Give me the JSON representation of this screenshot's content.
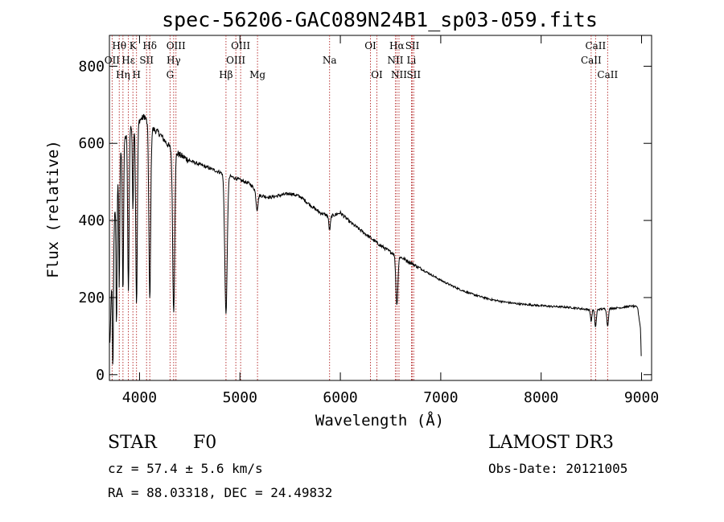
{
  "chart_data": {
    "type": "line",
    "title": "spec-56206-GAC089N24B1_sp03-059.fits",
    "xlabel": "Wavelength (Å)",
    "ylabel": "Flux (relative)",
    "xlim": [
      3700,
      9100
    ],
    "ylim": [
      -15,
      880
    ],
    "x_ticks": [
      4000,
      5000,
      6000,
      7000,
      8000,
      9000
    ],
    "x_tick_labels": [
      "4000",
      "5000",
      "6000",
      "7000",
      "8000",
      "9000"
    ],
    "y_ticks": [
      0,
      200,
      400,
      600,
      800
    ],
    "y_tick_labels": [
      "0",
      "200",
      "400",
      "600",
      "800"
    ],
    "continuum": [
      [
        3705,
        80
      ],
      [
        3730,
        300
      ],
      [
        3760,
        450
      ],
      [
        3800,
        560
      ],
      [
        3850,
        610
      ],
      [
        3900,
        640
      ],
      [
        3950,
        650
      ],
      [
        4000,
        660
      ],
      [
        4050,
        670
      ],
      [
        4100,
        640
      ],
      [
        4150,
        635
      ],
      [
        4200,
        625
      ],
      [
        4300,
        590
      ],
      [
        4400,
        570
      ],
      [
        4500,
        555
      ],
      [
        4600,
        545
      ],
      [
        4700,
        535
      ],
      [
        4800,
        525
      ],
      [
        4900,
        515
      ],
      [
        5000,
        505
      ],
      [
        5100,
        495
      ],
      [
        5200,
        465
      ],
      [
        5300,
        460
      ],
      [
        5400,
        465
      ],
      [
        5500,
        470
      ],
      [
        5600,
        462
      ],
      [
        5700,
        440
      ],
      [
        5800,
        420
      ],
      [
        5900,
        410
      ],
      [
        6000,
        420
      ],
      [
        6100,
        395
      ],
      [
        6200,
        375
      ],
      [
        6300,
        355
      ],
      [
        6400,
        335
      ],
      [
        6500,
        318
      ],
      [
        6600,
        305
      ],
      [
        6700,
        290
      ],
      [
        6800,
        275
      ],
      [
        6900,
        260
      ],
      [
        7000,
        245
      ],
      [
        7100,
        232
      ],
      [
        7200,
        220
      ],
      [
        7300,
        210
      ],
      [
        7400,
        202
      ],
      [
        7500,
        195
      ],
      [
        7600,
        190
      ],
      [
        7700,
        186
      ],
      [
        7800,
        183
      ],
      [
        7900,
        181
      ],
      [
        8000,
        179
      ],
      [
        8100,
        177
      ],
      [
        8200,
        176
      ],
      [
        8300,
        174
      ],
      [
        8400,
        171
      ],
      [
        8500,
        168
      ],
      [
        8600,
        170
      ],
      [
        8700,
        172
      ],
      [
        8800,
        174
      ],
      [
        8900,
        178
      ],
      [
        8960,
        175
      ],
      [
        8990,
        120
      ],
      [
        9000,
        20
      ]
    ],
    "absorption_lines": [
      {
        "center": 3735,
        "depth": 320,
        "width": 5
      },
      {
        "center": 3771,
        "depth": 360,
        "width": 5
      },
      {
        "center": 3798,
        "depth": 330,
        "width": 5
      },
      {
        "center": 3835,
        "depth": 380,
        "width": 6
      },
      {
        "center": 3889,
        "depth": 420,
        "width": 7
      },
      {
        "center": 3934,
        "depth": 230,
        "width": 5
      },
      {
        "center": 3970,
        "depth": 470,
        "width": 8
      },
      {
        "center": 4102,
        "depth": 450,
        "width": 9
      },
      {
        "center": 4340,
        "depth": 420,
        "width": 10
      },
      {
        "center": 4861,
        "depth": 360,
        "width": 12
      },
      {
        "center": 5170,
        "depth": 45,
        "width": 10
      },
      {
        "center": 5893,
        "depth": 35,
        "width": 8
      },
      {
        "center": 6563,
        "depth": 130,
        "width": 10
      },
      {
        "center": 8498,
        "depth": 30,
        "width": 7
      },
      {
        "center": 8542,
        "depth": 45,
        "width": 8
      },
      {
        "center": 8662,
        "depth": 45,
        "width": 8
      }
    ],
    "markers": [
      {
        "label": "Hθ",
        "x": 3798,
        "row": 0,
        "ha": "center"
      },
      {
        "label": "OII",
        "x": 3727,
        "row": 1,
        "ha": "center"
      },
      {
        "label": "Hη",
        "x": 3835,
        "row": 2,
        "ha": "center"
      },
      {
        "label": "K",
        "x": 3934,
        "row": 0,
        "ha": "center"
      },
      {
        "label": "Hε",
        "x": 3889,
        "row": 1,
        "ha": "center"
      },
      {
        "label": "H",
        "x": 3970,
        "row": 2,
        "ha": "center"
      },
      {
        "label": "Hδ",
        "x": 4102,
        "row": 0,
        "ha": "center"
      },
      {
        "label": "SII",
        "x": 4070,
        "row": 1,
        "ha": "center"
      },
      {
        "label": "OIII",
        "x": 4363,
        "row": 0,
        "ha": "center"
      },
      {
        "label": "Hγ",
        "x": 4340,
        "row": 1,
        "ha": "center"
      },
      {
        "label": "G",
        "x": 4304,
        "row": 2,
        "ha": "center"
      },
      {
        "label": "Hβ",
        "x": 4861,
        "row": 2,
        "ha": "center"
      },
      {
        "label": "OIII",
        "x": 5007,
        "row": 0,
        "ha": "center"
      },
      {
        "label": "OIII",
        "x": 4959,
        "row": 1,
        "ha": "center"
      },
      {
        "label": "Mg",
        "x": 5175,
        "row": 2,
        "ha": "center"
      },
      {
        "label": "Na",
        "x": 5893,
        "row": 1,
        "ha": "center"
      },
      {
        "label": "OI",
        "x": 6300,
        "row": 0,
        "ha": "center"
      },
      {
        "label": "OI",
        "x": 6364,
        "row": 2,
        "ha": "center"
      },
      {
        "label": "Hα",
        "x": 6563,
        "row": 0,
        "ha": "center"
      },
      {
        "label": "NII",
        "x": 6548,
        "row": 1,
        "ha": "center"
      },
      {
        "label": "NII",
        "x": 6584,
        "row": 2,
        "ha": "center"
      },
      {
        "label": "SII",
        "x": 6717,
        "row": 0,
        "ha": "center"
      },
      {
        "label": "Li",
        "x": 6708,
        "row": 1,
        "ha": "center"
      },
      {
        "label": "SII",
        "x": 6731,
        "row": 2,
        "ha": "center"
      },
      {
        "label": "CaII",
        "x": 8542,
        "row": 0,
        "ha": "center"
      },
      {
        "label": "CaII",
        "x": 8498,
        "row": 1,
        "ha": "center"
      },
      {
        "label": "CaII",
        "x": 8662,
        "row": 2,
        "ha": "center"
      }
    ],
    "marker_color": "#b22222"
  },
  "info": {
    "object_class": "STAR",
    "subclass": "F0",
    "survey": "LAMOST DR3",
    "redshift": "cz = 57.4 ± 5.6 km/s",
    "obs_date": "Obs-Date: 20121005",
    "coords": "RA =  88.03318, DEC =  24.49832"
  }
}
